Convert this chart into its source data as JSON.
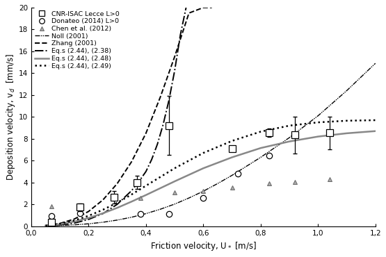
{
  "xlabel": "Friction velocity, U∗ [m/s]",
  "ylabel": "Deposition velocity, vₐ  [mm/s]",
  "xlim": [
    0.0,
    1.2
  ],
  "ylim": [
    0.0,
    20
  ],
  "xticks": [
    0.0,
    0.2,
    0.4,
    0.6,
    0.8,
    1.0,
    1.2
  ],
  "yticks": [
    0,
    2,
    4,
    6,
    8,
    10,
    12,
    14,
    16,
    18,
    20
  ],
  "xtick_labels": [
    "0,0",
    "0,2",
    "0,4",
    "0,6",
    "0,8",
    "1,0",
    "1,2"
  ],
  "ytick_labels": [
    "0",
    "2",
    "4",
    "6",
    "8",
    "10",
    "12",
    "14",
    "16",
    "18",
    "20"
  ],
  "cnr_x": [
    0.07,
    0.17,
    0.29,
    0.37,
    0.48,
    0.7,
    0.83,
    0.92,
    1.04
  ],
  "cnr_y": [
    0.35,
    1.75,
    2.65,
    4.0,
    9.2,
    7.1,
    8.55,
    8.35,
    8.55
  ],
  "cnr_yerr": [
    0.0,
    0.35,
    0.55,
    0.6,
    2.7,
    0.0,
    0.4,
    1.7,
    1.5
  ],
  "donateo_x": [
    0.07,
    0.17,
    0.38,
    0.48,
    0.6,
    0.72,
    0.83
  ],
  "donateo_y": [
    0.95,
    1.2,
    1.15,
    1.15,
    2.6,
    4.8,
    6.45
  ],
  "chen_x": [
    0.07,
    0.38,
    0.5,
    0.6,
    0.7,
    0.83,
    0.92,
    1.04
  ],
  "chen_y": [
    1.85,
    2.6,
    3.1,
    3.2,
    3.55,
    3.9,
    4.05,
    4.3
  ],
  "noll_x": [
    0.05,
    0.1,
    0.15,
    0.2,
    0.25,
    0.3,
    0.35,
    0.4,
    0.45,
    0.5,
    0.55,
    0.6,
    0.65,
    0.7,
    0.8,
    0.9,
    1.0,
    1.1,
    1.2
  ],
  "noll_y": [
    0.02,
    0.06,
    0.12,
    0.22,
    0.36,
    0.56,
    0.82,
    1.15,
    1.55,
    2.02,
    2.58,
    3.2,
    3.9,
    4.65,
    6.3,
    8.1,
    10.1,
    12.4,
    14.9
  ],
  "zhang_x": [
    0.05,
    0.1,
    0.15,
    0.2,
    0.25,
    0.3,
    0.35,
    0.4,
    0.45,
    0.5,
    0.55,
    0.6,
    0.63
  ],
  "zhang_y": [
    0.05,
    0.25,
    0.65,
    1.35,
    2.4,
    3.9,
    5.9,
    8.5,
    11.8,
    15.5,
    19.5,
    20.0,
    20.0
  ],
  "eq238_x": [
    0.05,
    0.1,
    0.15,
    0.2,
    0.25,
    0.3,
    0.35,
    0.38,
    0.4,
    0.42,
    0.44,
    0.46,
    0.48,
    0.5,
    0.52,
    0.54
  ],
  "eq238_y": [
    0.02,
    0.1,
    0.28,
    0.62,
    1.15,
    2.0,
    3.25,
    4.25,
    5.0,
    6.1,
    7.5,
    9.3,
    11.5,
    14.2,
    17.5,
    20.0
  ],
  "eq248_x": [
    0.05,
    0.1,
    0.15,
    0.2,
    0.25,
    0.3,
    0.35,
    0.4,
    0.5,
    0.6,
    0.7,
    0.8,
    0.9,
    1.0,
    1.1,
    1.2
  ],
  "eq248_y": [
    0.05,
    0.18,
    0.42,
    0.75,
    1.18,
    1.68,
    2.25,
    2.85,
    4.1,
    5.3,
    6.3,
    7.15,
    7.75,
    8.2,
    8.5,
    8.7
  ],
  "eq249_x": [
    0.05,
    0.1,
    0.15,
    0.2,
    0.25,
    0.3,
    0.35,
    0.4,
    0.5,
    0.6,
    0.7,
    0.8,
    0.9,
    1.0,
    1.1,
    1.2
  ],
  "eq249_y": [
    0.05,
    0.22,
    0.52,
    0.95,
    1.5,
    2.15,
    2.9,
    3.7,
    5.3,
    6.7,
    7.8,
    8.65,
    9.2,
    9.5,
    9.65,
    9.7
  ],
  "legend_labels": [
    "CNR-ISAC Lecce L>0",
    "Donateo (2014) L>0",
    "Chen et al. (2012)",
    "Noll (2001)",
    "Zhang (2001)",
    "Eq.s (2.44), (2.38)",
    "Eq.s (2.44), (2.48)",
    "Eq.s (2.44), (2.49)"
  ]
}
